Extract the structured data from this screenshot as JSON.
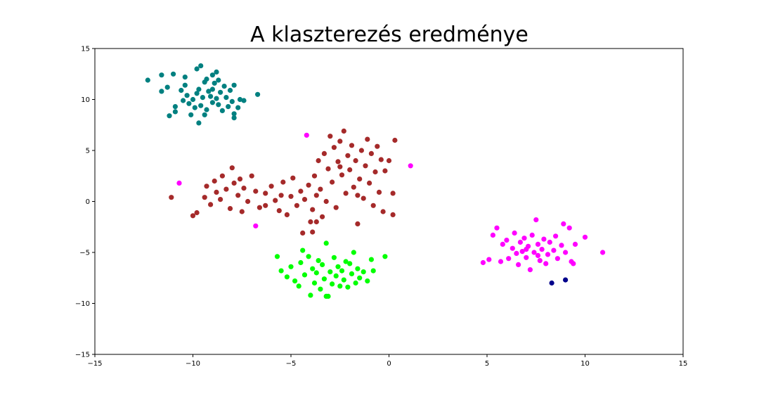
{
  "chart_data": {
    "type": "scatter",
    "title": "A klaszterezés eredménye",
    "xlabel": "",
    "ylabel": "",
    "xlim": [
      -15,
      15
    ],
    "ylim": [
      -15,
      15
    ],
    "xticks": [
      -15,
      -10,
      -5,
      0,
      5,
      10,
      15
    ],
    "yticks": [
      -15,
      -10,
      -5,
      0,
      5,
      10,
      15
    ],
    "xtick_labels": [
      "−15",
      "−10",
      "−5",
      "0",
      "5",
      "10",
      "15"
    ],
    "ytick_labels": [
      "−15",
      "−10",
      "−5",
      "0",
      "5",
      "10",
      "15"
    ],
    "grid": false,
    "legend": "none",
    "series": [
      {
        "color": "#008080",
        "points": [
          [
            -12.3,
            11.9
          ],
          [
            -11.6,
            12.4
          ],
          [
            -11.0,
            12.5
          ],
          [
            -10.4,
            12.2
          ],
          [
            -9.8,
            13.0
          ],
          [
            -9.6,
            13.3
          ],
          [
            -9.0,
            12.4
          ],
          [
            -8.8,
            12.7
          ],
          [
            -8.4,
            11.3
          ],
          [
            -7.9,
            11.4
          ],
          [
            -7.6,
            10.0
          ],
          [
            -7.4,
            9.9
          ],
          [
            -6.7,
            10.5
          ],
          [
            -11.6,
            10.8
          ],
          [
            -11.3,
            11.2
          ],
          [
            -11.2,
            8.4
          ],
          [
            -10.9,
            8.8
          ],
          [
            -10.9,
            9.3
          ],
          [
            -10.6,
            10.9
          ],
          [
            -10.4,
            11.4
          ],
          [
            -10.3,
            10.4
          ],
          [
            -10.2,
            9.6
          ],
          [
            -10.1,
            8.5
          ],
          [
            -10.0,
            10.0
          ],
          [
            -9.8,
            10.6
          ],
          [
            -9.7,
            11.0
          ],
          [
            -9.6,
            9.4
          ],
          [
            -9.5,
            10.2
          ],
          [
            -9.4,
            11.7
          ],
          [
            -9.3,
            12.0
          ],
          [
            -9.3,
            9.0
          ],
          [
            -9.2,
            10.8
          ],
          [
            -9.1,
            10.3
          ],
          [
            -9.0,
            9.7
          ],
          [
            -9.0,
            11.0
          ],
          [
            -8.9,
            11.6
          ],
          [
            -8.8,
            10.1
          ],
          [
            -8.7,
            9.5
          ],
          [
            -8.6,
            10.7
          ],
          [
            -8.5,
            8.9
          ],
          [
            -8.3,
            10.2
          ],
          [
            -8.2,
            9.3
          ],
          [
            -8.1,
            10.9
          ],
          [
            -8.0,
            9.8
          ],
          [
            -7.9,
            8.6
          ],
          [
            -7.9,
            8.2
          ],
          [
            -7.7,
            9.2
          ],
          [
            -9.7,
            7.7
          ],
          [
            -9.9,
            9.2
          ],
          [
            -10.5,
            9.9
          ],
          [
            -9.4,
            8.5
          ],
          [
            -8.7,
            11.9
          ]
        ]
      },
      {
        "color": "#a52a2a",
        "points": [
          [
            -11.1,
            0.4
          ],
          [
            -10.0,
            -1.4
          ],
          [
            -9.8,
            -1.1
          ],
          [
            -9.4,
            0.4
          ],
          [
            -9.3,
            1.5
          ],
          [
            -9.1,
            -0.3
          ],
          [
            -8.9,
            2.0
          ],
          [
            -8.8,
            0.9
          ],
          [
            -8.6,
            0.2
          ],
          [
            -8.5,
            2.5
          ],
          [
            -8.3,
            1.2
          ],
          [
            -8.1,
            -0.7
          ],
          [
            -8.0,
            3.3
          ],
          [
            -7.9,
            1.8
          ],
          [
            -7.7,
            0.6
          ],
          [
            -7.6,
            2.2
          ],
          [
            -7.5,
            -1.0
          ],
          [
            -7.4,
            1.3
          ],
          [
            -7.2,
            0.0
          ],
          [
            -7.0,
            2.5
          ],
          [
            -6.8,
            1.0
          ],
          [
            -6.6,
            -0.6
          ],
          [
            -6.3,
            0.8
          ],
          [
            -6.0,
            1.5
          ],
          [
            -5.8,
            0.1
          ],
          [
            -5.6,
            -0.9
          ],
          [
            -5.4,
            1.9
          ],
          [
            -5.2,
            -1.3
          ],
          [
            -5.0,
            0.5
          ],
          [
            -4.9,
            2.3
          ],
          [
            -4.7,
            -0.4
          ],
          [
            -4.5,
            1.0
          ],
          [
            -4.4,
            -3.1
          ],
          [
            -4.3,
            0.2
          ],
          [
            -4.1,
            1.6
          ],
          [
            -4.0,
            -2.0
          ],
          [
            -3.9,
            -0.8
          ],
          [
            -3.8,
            2.5
          ],
          [
            -3.7,
            0.6
          ],
          [
            -3.6,
            4.0
          ],
          [
            -3.5,
            1.2
          ],
          [
            -3.4,
            -1.5
          ],
          [
            -3.3,
            4.7
          ],
          [
            -3.2,
            0.0
          ],
          [
            -3.1,
            3.2
          ],
          [
            -3.0,
            6.4
          ],
          [
            -2.9,
            1.9
          ],
          [
            -2.8,
            5.3
          ],
          [
            -2.7,
            -0.6
          ],
          [
            -2.6,
            3.9
          ],
          [
            -2.5,
            5.9
          ],
          [
            -2.4,
            2.6
          ],
          [
            -2.3,
            6.9
          ],
          [
            -2.2,
            0.8
          ],
          [
            -2.1,
            4.5
          ],
          [
            -2.0,
            3.1
          ],
          [
            -1.9,
            5.5
          ],
          [
            -1.8,
            1.4
          ],
          [
            -1.7,
            4.0
          ],
          [
            -1.6,
            -2.2
          ],
          [
            -1.5,
            2.2
          ],
          [
            -1.4,
            5.0
          ],
          [
            -1.3,
            0.3
          ],
          [
            -1.2,
            3.5
          ],
          [
            -1.1,
            6.1
          ],
          [
            -1.0,
            1.8
          ],
          [
            -0.9,
            4.7
          ],
          [
            -0.8,
            -0.4
          ],
          [
            -0.7,
            2.9
          ],
          [
            -0.6,
            5.4
          ],
          [
            -0.5,
            0.9
          ],
          [
            -0.4,
            4.1
          ],
          [
            -0.3,
            -1.0
          ],
          [
            -0.2,
            3.0
          ],
          [
            0.0,
            4.0
          ],
          [
            0.2,
            0.8
          ],
          [
            0.2,
            -1.3
          ],
          [
            0.3,
            6.0
          ],
          [
            -6.3,
            -0.4
          ],
          [
            -5.5,
            0.6
          ],
          [
            -3.7,
            -2.0
          ],
          [
            -3.9,
            -3.0
          ],
          [
            -2.5,
            3.4
          ],
          [
            -1.6,
            0.6
          ]
        ]
      },
      {
        "color": "#00ff00",
        "points": [
          [
            -5.7,
            -5.4
          ],
          [
            -5.5,
            -6.8
          ],
          [
            -5.2,
            -7.4
          ],
          [
            -5.0,
            -6.4
          ],
          [
            -4.8,
            -7.8
          ],
          [
            -4.6,
            -8.3
          ],
          [
            -4.5,
            -6.0
          ],
          [
            -4.3,
            -7.2
          ],
          [
            -4.1,
            -5.4
          ],
          [
            -4.0,
            -9.2
          ],
          [
            -3.9,
            -6.6
          ],
          [
            -3.8,
            -8.0
          ],
          [
            -3.7,
            -7.0
          ],
          [
            -3.6,
            -5.8
          ],
          [
            -3.5,
            -8.6
          ],
          [
            -3.4,
            -6.2
          ],
          [
            -3.3,
            -7.6
          ],
          [
            -3.2,
            -4.1
          ],
          [
            -3.1,
            -9.3
          ],
          [
            -3.0,
            -6.9
          ],
          [
            -2.9,
            -8.1
          ],
          [
            -2.8,
            -5.5
          ],
          [
            -2.7,
            -7.3
          ],
          [
            -2.6,
            -6.4
          ],
          [
            -2.5,
            -8.3
          ],
          [
            -2.4,
            -6.8
          ],
          [
            -2.3,
            -7.7
          ],
          [
            -2.2,
            -5.9
          ],
          [
            -2.1,
            -8.4
          ],
          [
            -2.0,
            -6.1
          ],
          [
            -1.9,
            -7.1
          ],
          [
            -1.8,
            -5.0
          ],
          [
            -1.7,
            -8.0
          ],
          [
            -1.6,
            -6.6
          ],
          [
            -1.5,
            -7.5
          ],
          [
            -1.3,
            -6.9
          ],
          [
            -1.1,
            -7.8
          ],
          [
            -0.9,
            -5.7
          ],
          [
            -0.8,
            -6.8
          ],
          [
            -0.2,
            -5.4
          ],
          [
            -3.2,
            -9.3
          ],
          [
            -4.4,
            -4.8
          ]
        ]
      },
      {
        "color": "#ff00ff",
        "points": [
          [
            4.8,
            -6.0
          ],
          [
            5.1,
            -5.7
          ],
          [
            5.3,
            -3.3
          ],
          [
            5.5,
            -2.6
          ],
          [
            5.7,
            -5.9
          ],
          [
            5.8,
            -4.2
          ],
          [
            6.0,
            -3.8
          ],
          [
            6.1,
            -5.6
          ],
          [
            6.3,
            -4.6
          ],
          [
            6.4,
            -3.1
          ],
          [
            6.5,
            -5.1
          ],
          [
            6.6,
            -6.2
          ],
          [
            6.7,
            -4.0
          ],
          [
            6.8,
            -4.9
          ],
          [
            6.9,
            -3.6
          ],
          [
            7.0,
            -5.5
          ],
          [
            7.1,
            -4.4
          ],
          [
            7.2,
            -6.7
          ],
          [
            7.3,
            -3.3
          ],
          [
            7.4,
            -5.0
          ],
          [
            7.5,
            -1.8
          ],
          [
            7.6,
            -4.2
          ],
          [
            7.7,
            -5.8
          ],
          [
            7.8,
            -4.7
          ],
          [
            7.9,
            -3.7
          ],
          [
            8.0,
            -6.1
          ],
          [
            8.1,
            -5.2
          ],
          [
            8.2,
            -4.0
          ],
          [
            8.4,
            -4.8
          ],
          [
            8.5,
            -3.4
          ],
          [
            8.6,
            -5.6
          ],
          [
            8.8,
            -4.3
          ],
          [
            8.9,
            -2.2
          ],
          [
            9.0,
            -5.0
          ],
          [
            9.2,
            -2.6
          ],
          [
            9.3,
            -5.9
          ],
          [
            9.4,
            -6.1
          ],
          [
            9.5,
            -4.2
          ],
          [
            10.0,
            -3.5
          ],
          [
            10.9,
            -5.0
          ],
          [
            7.0,
            -4.7
          ],
          [
            7.6,
            -5.3
          ],
          [
            -10.7,
            1.8
          ],
          [
            -6.8,
            -2.4
          ],
          [
            -4.2,
            6.5
          ],
          [
            1.1,
            3.5
          ]
        ]
      },
      {
        "color": "#00008b",
        "points": [
          [
            8.3,
            -8.0
          ],
          [
            9.0,
            -7.7
          ]
        ]
      }
    ]
  }
}
